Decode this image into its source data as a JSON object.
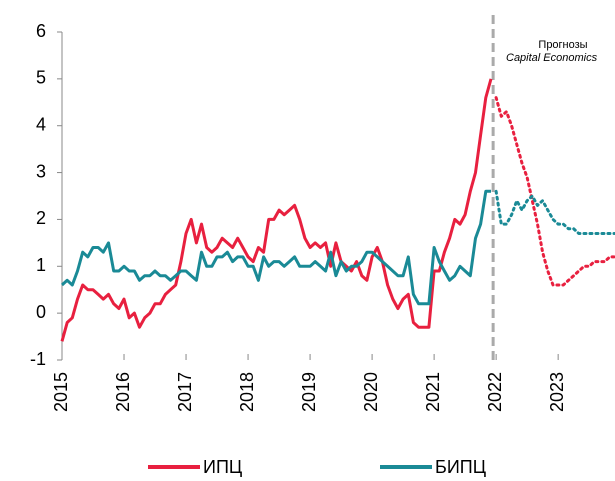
{
  "chart_data": {
    "type": "line",
    "annotation": [
      "Прогнозы",
      "Capital Economics"
    ],
    "forecast_from": "2022",
    "categories": [
      "2015",
      null,
      null,
      null,
      null,
      null,
      null,
      null,
      null,
      null,
      null,
      null,
      "2016",
      null,
      null,
      null,
      null,
      null,
      null,
      null,
      null,
      null,
      null,
      null,
      "2017",
      null,
      null,
      null,
      null,
      null,
      null,
      null,
      null,
      null,
      null,
      null,
      "2018",
      null,
      null,
      null,
      null,
      null,
      null,
      null,
      null,
      null,
      null,
      null,
      "2019",
      null,
      null,
      null,
      null,
      null,
      null,
      null,
      null,
      null,
      null,
      null,
      "2020",
      null,
      null,
      null,
      null,
      null,
      null,
      null,
      null,
      null,
      null,
      null,
      "2021",
      null,
      null,
      null,
      null,
      null,
      null,
      null,
      null,
      null,
      null,
      null,
      "2022",
      null,
      null,
      null,
      null,
      null,
      null,
      null,
      null,
      null,
      null,
      null,
      "2023",
      null,
      null,
      null,
      null,
      null,
      null,
      null,
      null,
      null,
      null,
      null
    ],
    "series": [
      {
        "name": "ИПЦ",
        "color": "#e8203f",
        "values": [
          -0.6,
          -0.2,
          -0.1,
          0.3,
          0.6,
          0.5,
          0.5,
          0.4,
          0.3,
          0.4,
          0.2,
          0.1,
          0.3,
          -0.1,
          0.0,
          -0.3,
          -0.1,
          0.0,
          0.2,
          0.2,
          0.4,
          0.5,
          0.6,
          1.1,
          1.7,
          2.0,
          1.5,
          1.9,
          1.4,
          1.3,
          1.4,
          1.6,
          1.5,
          1.4,
          1.6,
          1.4,
          1.2,
          1.1,
          1.4,
          1.3,
          2.0,
          2.0,
          2.2,
          2.1,
          2.2,
          2.3,
          2.0,
          1.6,
          1.4,
          1.5,
          1.4,
          1.5,
          1.0,
          1.5,
          1.1,
          1.0,
          0.9,
          1.1,
          0.8,
          0.7,
          1.2,
          1.4,
          1.1,
          0.6,
          0.3,
          0.1,
          0.3,
          0.4,
          -0.2,
          -0.3,
          -0.3,
          -0.3,
          0.9,
          0.9,
          1.3,
          1.6,
          2.0,
          1.9,
          2.1,
          2.6,
          3.0,
          3.8,
          4.6,
          5.0,
          4.6,
          4.2,
          4.3,
          4.0,
          3.6,
          3.2,
          2.9,
          2.4,
          1.9,
          1.3,
          0.9,
          0.6,
          0.6,
          0.6,
          0.7,
          0.8,
          0.9,
          1.0,
          1.0,
          1.1,
          1.1,
          1.1,
          1.2,
          1.2
        ]
      },
      {
        "name": "БИПЦ",
        "color": "#1a8a96",
        "values": [
          0.6,
          0.7,
          0.6,
          0.9,
          1.3,
          1.2,
          1.4,
          1.4,
          1.3,
          1.5,
          0.9,
          0.9,
          1.0,
          0.9,
          0.9,
          0.7,
          0.8,
          0.8,
          0.9,
          0.8,
          0.8,
          0.7,
          0.8,
          0.9,
          0.9,
          0.8,
          0.7,
          1.3,
          1.0,
          1.0,
          1.2,
          1.2,
          1.3,
          1.1,
          1.2,
          1.2,
          1.0,
          1.0,
          0.7,
          1.2,
          1.0,
          1.1,
          1.1,
          1.0,
          1.1,
          1.2,
          1.0,
          1.0,
          1.0,
          1.1,
          1.0,
          0.9,
          1.3,
          0.8,
          1.1,
          0.9,
          1.0,
          1.0,
          1.1,
          1.3,
          1.3,
          1.2,
          1.1,
          1.0,
          0.9,
          0.8,
          0.8,
          1.2,
          0.4,
          0.2,
          0.2,
          0.2,
          1.4,
          1.1,
          0.9,
          0.7,
          0.8,
          1.0,
          0.9,
          0.8,
          1.6,
          1.9,
          2.6,
          2.6,
          2.6,
          1.9,
          1.9,
          2.1,
          2.4,
          2.2,
          2.4,
          2.5,
          2.3,
          2.4,
          2.2,
          2.0,
          1.9,
          1.9,
          1.8,
          1.8,
          1.7,
          1.7,
          1.7,
          1.7,
          1.7,
          1.7,
          1.7,
          1.7
        ]
      }
    ],
    "ylim": [
      -1,
      6
    ],
    "yticks": [
      -1,
      0,
      1,
      2,
      3,
      4,
      5,
      6
    ],
    "legend": "bottom",
    "grid": false
  }
}
